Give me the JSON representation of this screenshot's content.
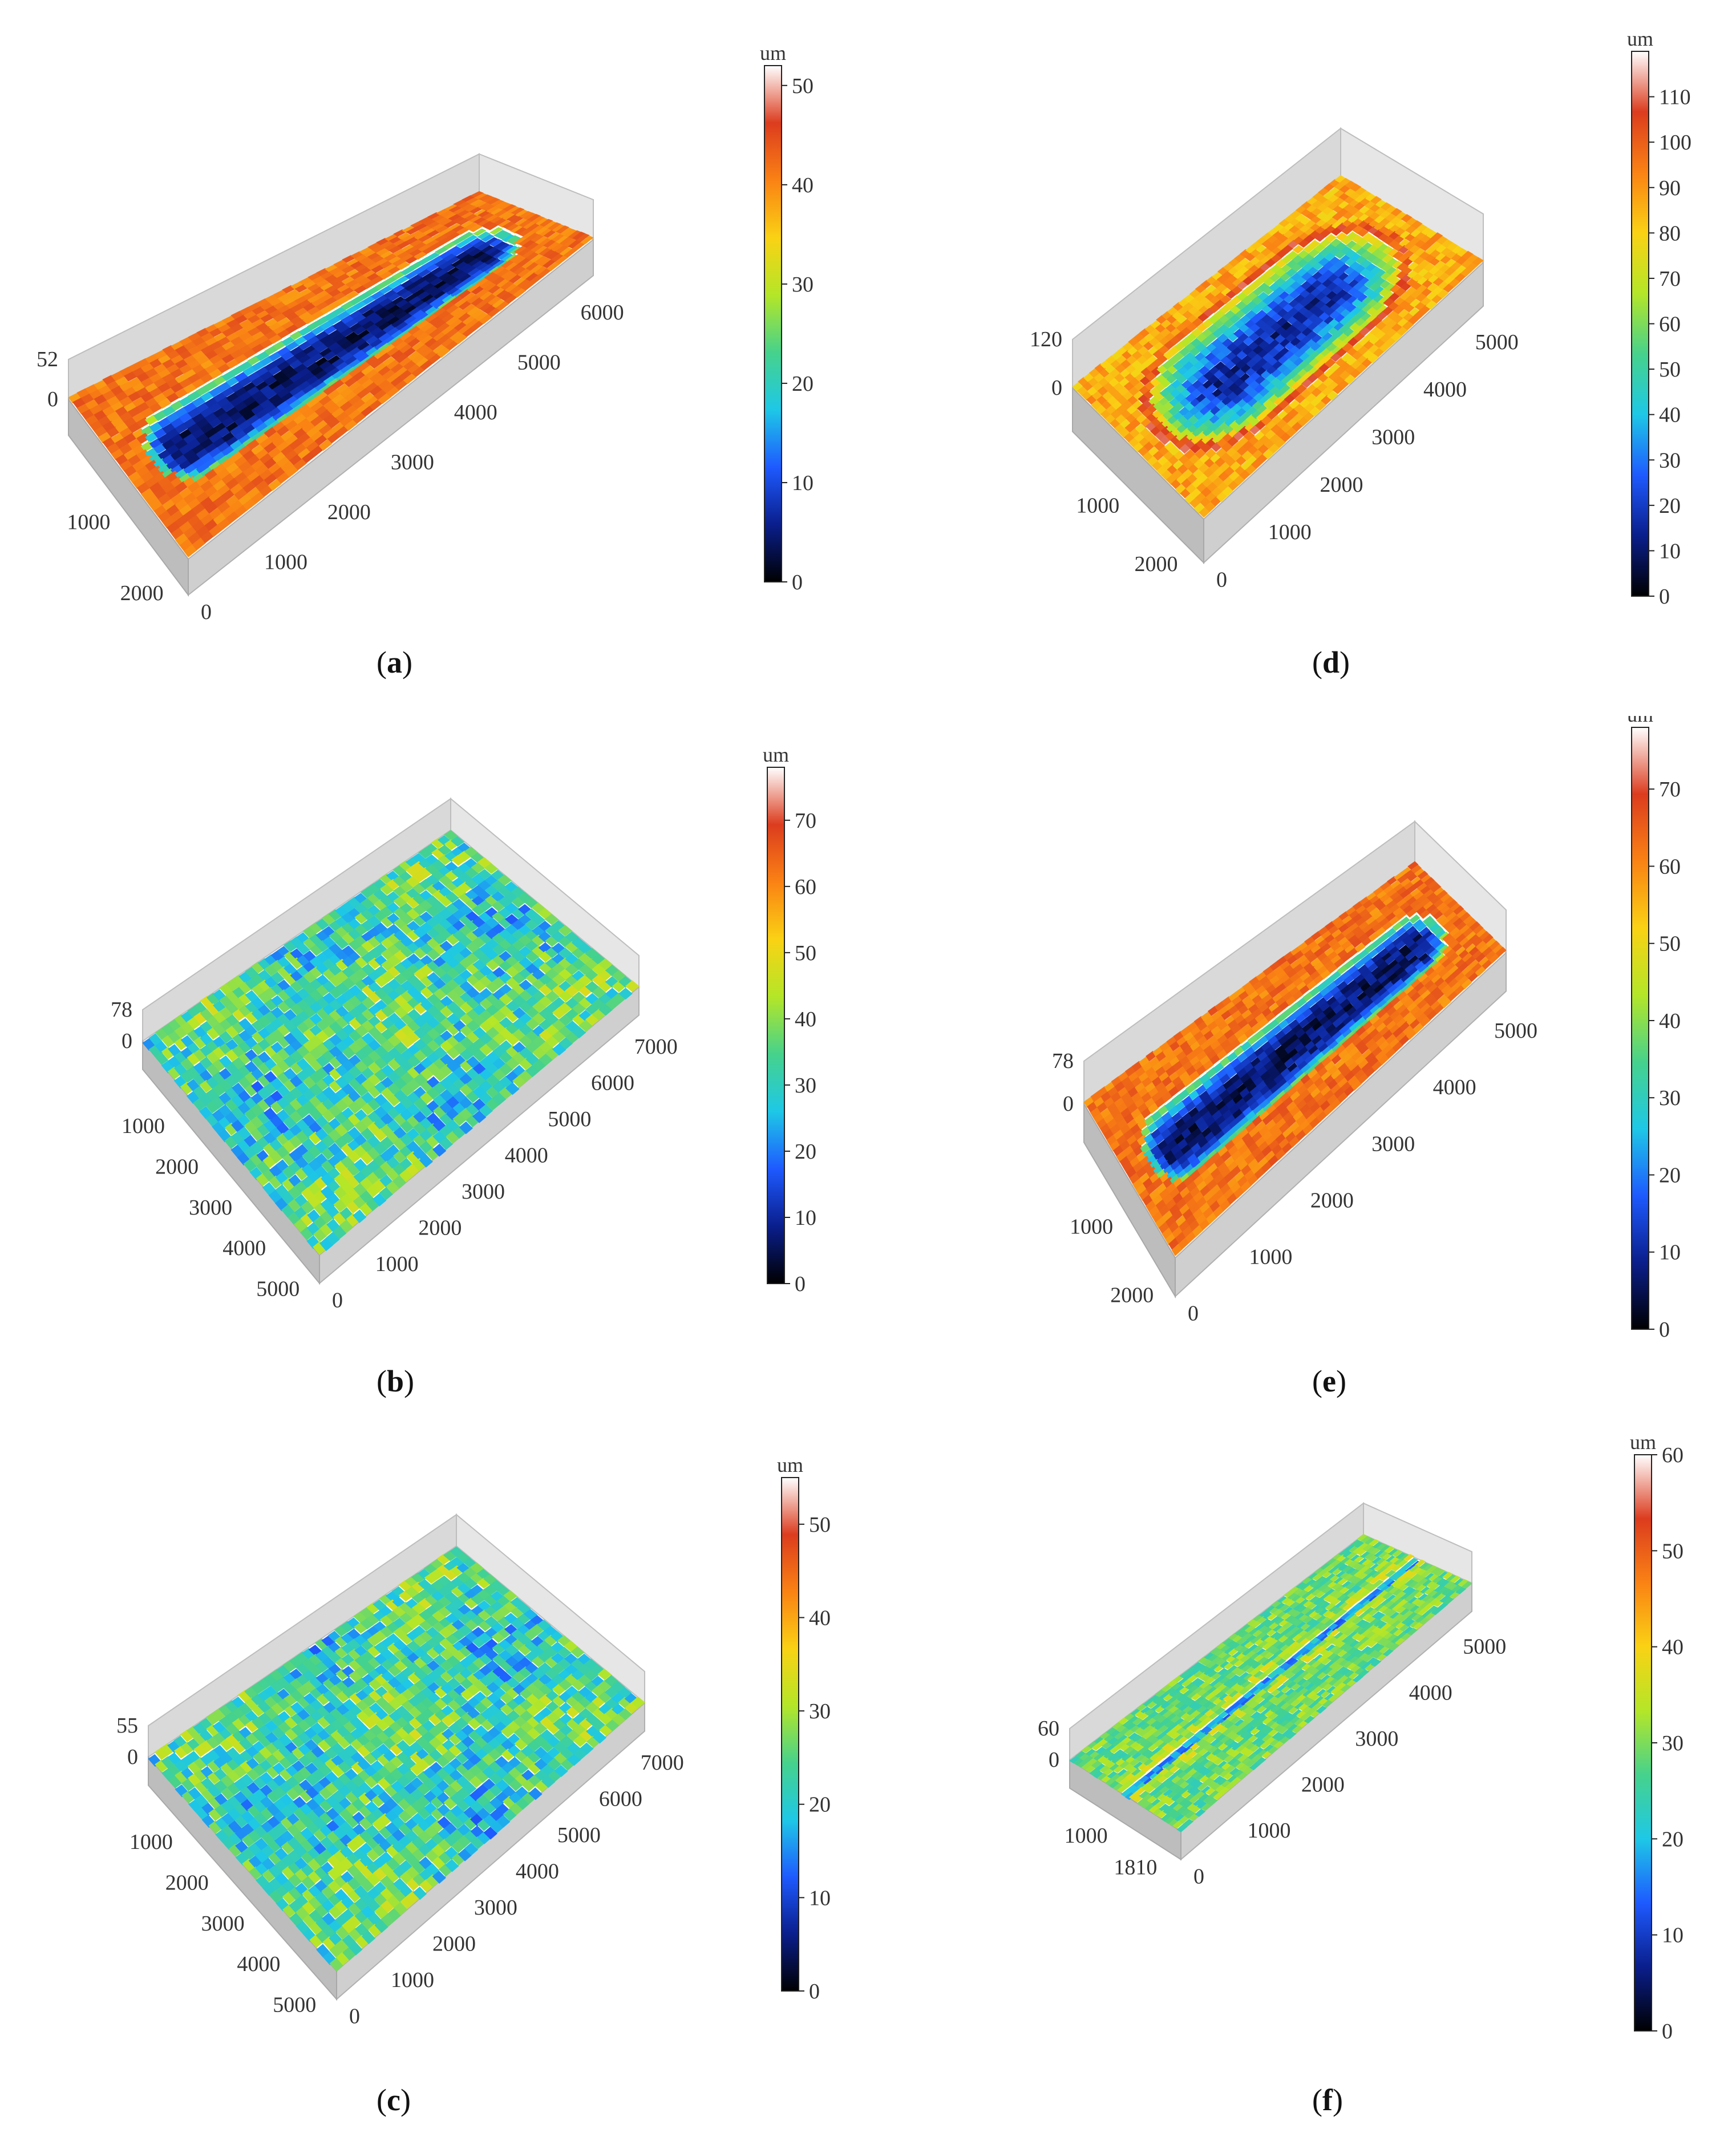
{
  "panels": [
    {
      "id": "a",
      "label": "a",
      "zmax": "52",
      "zmin": "0",
      "x_ticks": [
        "1000",
        "2000"
      ],
      "y_ticks": [
        "0",
        "1000",
        "2000",
        "3000",
        "4000",
        "5000",
        "6000"
      ],
      "colorbar": {
        "unit": "um",
        "ticks": [
          "0",
          "10",
          "20",
          "30",
          "40",
          "50"
        ],
        "max": 52
      },
      "surface": "elongated-pocket"
    },
    {
      "id": "b",
      "label": "b",
      "zmax": "78",
      "zmin": "0",
      "x_ticks": [
        "1000",
        "2000",
        "3000",
        "4000",
        "5000"
      ],
      "y_ticks": [
        "0",
        "1000",
        "2000",
        "3000",
        "4000",
        "5000",
        "6000",
        "7000"
      ],
      "colorbar": {
        "unit": "um",
        "ticks": [
          "0",
          "10",
          "20",
          "30",
          "40",
          "50",
          "60",
          "70"
        ],
        "max": 78
      },
      "surface": "rough-flat"
    },
    {
      "id": "c",
      "label": "c",
      "zmax": "55",
      "zmin": "0",
      "x_ticks": [
        "1000",
        "2000",
        "3000",
        "4000",
        "5000"
      ],
      "y_ticks": [
        "0",
        "1000",
        "2000",
        "3000",
        "4000",
        "5000",
        "6000",
        "7000"
      ],
      "colorbar": {
        "unit": "um",
        "ticks": [
          "0",
          "10",
          "20",
          "30",
          "40",
          "50"
        ],
        "max": 55
      },
      "surface": "rough-flat"
    },
    {
      "id": "d",
      "label": "d",
      "zmax": "120",
      "zmin": "0",
      "x_ticks": [
        "1000",
        "2000"
      ],
      "y_ticks": [
        "0",
        "1000",
        "2000",
        "3000",
        "4000",
        "5000"
      ],
      "colorbar": {
        "unit": "um",
        "ticks": [
          "0",
          "10",
          "20",
          "30",
          "40",
          "50",
          "60",
          "70",
          "80",
          "90",
          "100",
          "110"
        ],
        "max": 120
      },
      "surface": "oval-pocket"
    },
    {
      "id": "e",
      "label": "e",
      "zmax": "78",
      "zmin": "0",
      "x_ticks": [
        "1000",
        "2000"
      ],
      "y_ticks": [
        "0",
        "1000",
        "2000",
        "3000",
        "4000",
        "5000"
      ],
      "colorbar": {
        "unit": "um",
        "ticks": [
          "0",
          "10",
          "20",
          "30",
          "40",
          "50",
          "60",
          "70"
        ],
        "max": 78
      },
      "surface": "elongated-pocket"
    },
    {
      "id": "f",
      "label": "f",
      "zmax": "60",
      "zmin": "0",
      "x_ticks": [
        "1000",
        "1810"
      ],
      "y_ticks": [
        "0",
        "1000",
        "2000",
        "3000",
        "4000",
        "5000"
      ],
      "colorbar": {
        "unit": "um",
        "ticks": [
          "0",
          "10",
          "20",
          "30",
          "40",
          "50",
          "60"
        ],
        "max": 60
      },
      "surface": "shallow-groove"
    }
  ],
  "colormap": [
    "#000000",
    "#0a1e8c",
    "#1e5aff",
    "#1ec8e6",
    "#46d28c",
    "#b4e628",
    "#fad214",
    "#fa8214",
    "#dc3c1e",
    "#ffffff"
  ]
}
